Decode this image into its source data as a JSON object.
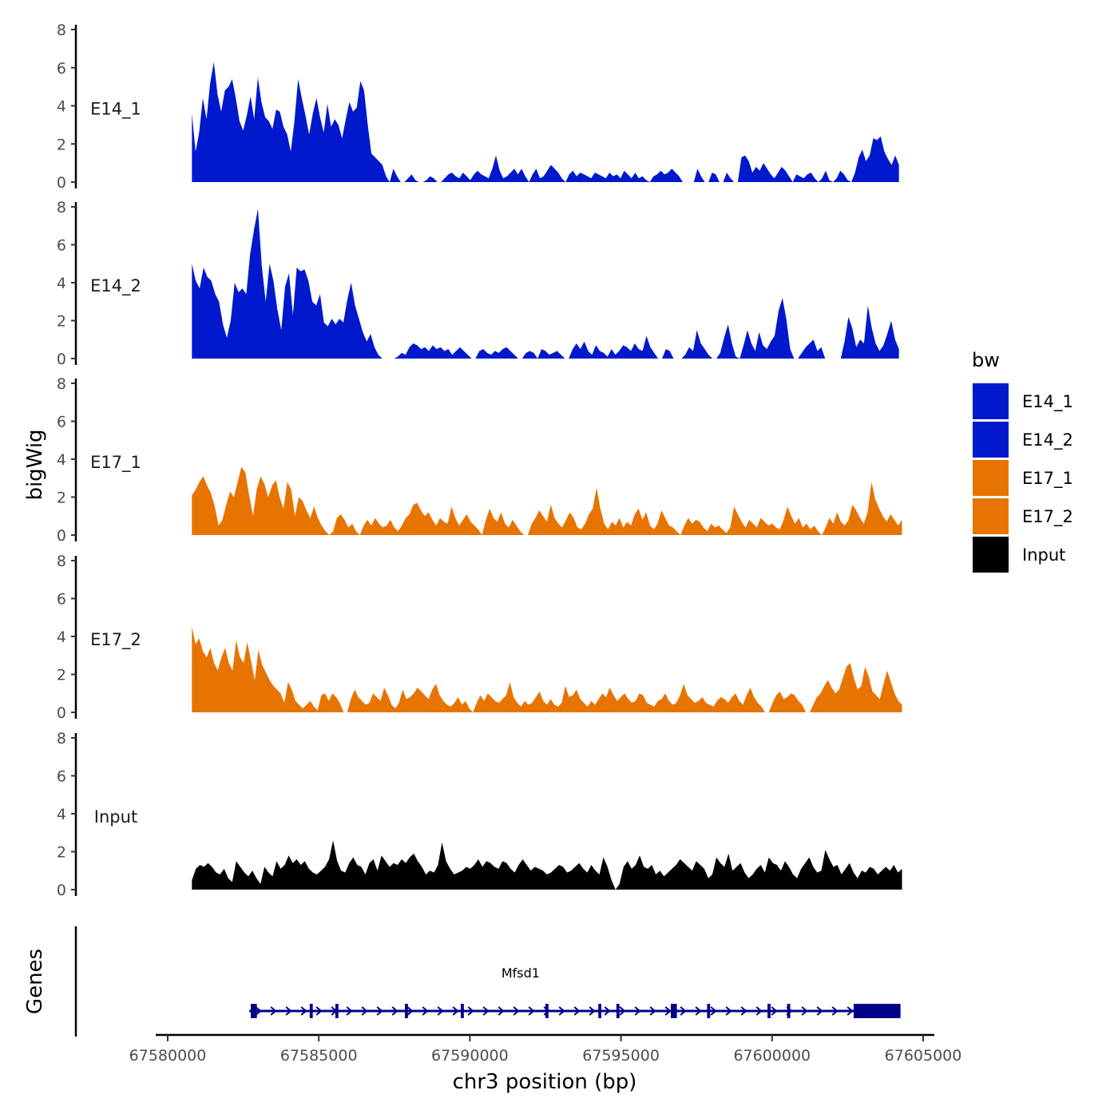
{
  "chart_data": {
    "type": "area",
    "title": "",
    "ylabel": "bigWig",
    "xlabel": "chr3 position (bp)",
    "chromosome": "chr3",
    "xlim": [
      67579500,
      67605500
    ],
    "ylim": [
      0,
      8
    ],
    "y_ticks": [
      0,
      2,
      4,
      6,
      8
    ],
    "x_ticks": [
      67580000,
      67585000,
      67590000,
      67595000,
      67600000,
      67605000
    ],
    "x_tick_labels": [
      "67580000",
      "67585000",
      "67590000",
      "67595000",
      "67600000",
      "67605000"
    ],
    "legend": {
      "title": "bw",
      "position": "right",
      "entries": [
        {
          "label": "E14_1",
          "color": "#0019CC"
        },
        {
          "label": "E14_2",
          "color": "#0019CC"
        },
        {
          "label": "E17_1",
          "color": "#E87400"
        },
        {
          "label": "E17_2",
          "color": "#E87400"
        },
        {
          "label": "Input",
          "color": "#000000"
        }
      ]
    },
    "series": [
      {
        "name": "E14_1",
        "color": "#0019CC",
        "x_start": 67580800,
        "x_end": 67604200,
        "values": [
          3.6,
          1.6,
          2.6,
          4.4,
          3.3,
          5.2,
          6.3,
          4.6,
          3.7,
          4.8,
          5.0,
          5.4,
          4.4,
          3.2,
          2.7,
          3.5,
          4.5,
          3.3,
          5.5,
          4.2,
          3.4,
          3.2,
          2.8,
          3.8,
          3.7,
          2.9,
          2.5,
          1.6,
          3.2,
          5.4,
          4.4,
          3.5,
          2.5,
          3.6,
          4.4,
          3.4,
          2.6,
          4.1,
          2.9,
          3.3,
          3.0,
          2.3,
          3.3,
          4.2,
          3.7,
          3.9,
          5.3,
          4.8,
          3.0,
          1.5,
          1.3,
          1.1,
          0.9,
          0.3,
          0.0,
          0.7,
          0.3,
          0.0,
          0.0,
          0.2,
          0.4,
          0.1,
          0.0,
          0.0,
          0.1,
          0.3,
          0.2,
          0.0,
          0.0,
          0.2,
          0.4,
          0.5,
          0.3,
          0.2,
          0.5,
          0.3,
          0.1,
          0.4,
          0.6,
          0.4,
          0.3,
          0.2,
          0.7,
          1.4,
          0.6,
          0.2,
          0.3,
          0.5,
          0.7,
          0.4,
          0.7,
          0.3,
          0.0,
          0.4,
          0.7,
          0.2,
          0.3,
          0.6,
          0.9,
          0.7,
          0.5,
          0.2,
          0.0,
          0.4,
          0.6,
          0.3,
          0.5,
          0.4,
          0.3,
          0.2,
          0.5,
          0.4,
          0.3,
          0.2,
          0.5,
          0.3,
          0.4,
          0.2,
          0.6,
          0.4,
          0.2,
          0.5,
          0.2,
          0.3,
          0.1,
          0.0,
          0.3,
          0.4,
          0.6,
          0.4,
          0.5,
          0.7,
          0.5,
          0.3,
          0.0,
          0.0,
          0.0,
          0.0,
          0.7,
          0.3,
          0.0,
          0.0,
          0.5,
          0.4,
          0.0,
          0.0,
          0.5,
          0.2,
          0.0,
          0.0,
          1.3,
          1.4,
          1.1,
          0.5,
          0.8,
          0.6,
          1.0,
          0.7,
          0.4,
          0.2,
          0.5,
          0.8,
          0.6,
          0.3,
          0.0,
          0.4,
          0.3,
          0.2,
          0.4,
          0.5,
          0.2,
          0.0,
          0.2,
          0.6,
          0.1,
          0.0,
          0.2,
          0.6,
          0.4,
          0.1,
          0.0,
          0.5,
          1.3,
          1.7,
          1.1,
          1.4,
          2.3,
          2.2,
          2.4,
          1.6,
          1.2,
          0.9,
          1.4,
          0.9
        ]
      },
      {
        "name": "E14_2",
        "color": "#0019CC",
        "x_start": 67580800,
        "x_end": 67604200,
        "values": [
          5.0,
          4.1,
          3.7,
          4.8,
          4.3,
          4.1,
          3.4,
          3.0,
          1.8,
          1.1,
          2.0,
          4.0,
          3.5,
          3.7,
          3.4,
          5.5,
          6.8,
          7.9,
          4.9,
          3.0,
          5.0,
          4.1,
          2.6,
          1.5,
          3.8,
          4.5,
          2.3,
          4.8,
          4.6,
          4.7,
          4.1,
          3.0,
          2.8,
          3.4,
          1.9,
          1.7,
          2.1,
          1.8,
          2.1,
          1.9,
          3.1,
          4.0,
          2.8,
          2.1,
          1.4,
          0.9,
          1.3,
          0.6,
          0.2,
          0.0,
          0.0,
          0.0,
          0.0,
          0.1,
          0.3,
          0.2,
          0.6,
          0.8,
          0.7,
          0.5,
          0.6,
          0.4,
          0.7,
          0.5,
          0.6,
          0.4,
          0.5,
          0.2,
          0.4,
          0.6,
          0.4,
          0.2,
          0.0,
          0.0,
          0.4,
          0.5,
          0.3,
          0.2,
          0.4,
          0.3,
          0.5,
          0.6,
          0.4,
          0.2,
          0.0,
          0.0,
          0.3,
          0.4,
          0.3,
          0.0,
          0.5,
          0.4,
          0.2,
          0.3,
          0.4,
          0.2,
          0.0,
          0.0,
          0.5,
          0.8,
          0.5,
          0.9,
          0.4,
          0.2,
          0.7,
          0.4,
          0.3,
          0.1,
          0.5,
          0.2,
          0.4,
          0.7,
          0.6,
          0.4,
          0.8,
          0.5,
          0.4,
          1.2,
          0.6,
          0.3,
          0.0,
          0.0,
          0.5,
          0.4,
          0.0,
          0.0,
          0.0,
          0.2,
          0.6,
          0.4,
          1.5,
          0.8,
          0.5,
          0.2,
          0.0,
          0.0,
          0.3,
          1.1,
          1.8,
          0.8,
          0.1,
          0.0,
          0.7,
          1.5,
          0.8,
          0.4,
          1.4,
          0.7,
          0.5,
          0.9,
          1.2,
          2.5,
          3.2,
          2.1,
          0.5,
          0.0,
          0.0,
          0.3,
          0.6,
          0.8,
          1.0,
          0.4,
          0.6,
          0.0,
          0.0,
          0.0,
          0.0,
          0.0,
          0.9,
          2.2,
          1.6,
          0.6,
          1.0,
          0.8,
          2.8,
          1.6,
          0.8,
          0.4,
          0.7,
          1.3,
          2.0,
          1.0,
          0.5
        ]
      },
      {
        "name": "E17_1",
        "color": "#E87400",
        "x_start": 67580800,
        "x_end": 67604300,
        "values": [
          2.1,
          2.4,
          2.8,
          3.1,
          2.6,
          2.2,
          1.5,
          0.5,
          0.8,
          1.6,
          2.3,
          2.0,
          2.8,
          3.6,
          3.3,
          2.1,
          1.0,
          2.4,
          3.1,
          2.7,
          2.0,
          2.6,
          2.9,
          2.0,
          1.4,
          2.8,
          2.4,
          1.0,
          2.0,
          1.8,
          1.3,
          0.9,
          1.5,
          0.9,
          0.5,
          0.2,
          0.0,
          0.2,
          0.9,
          1.1,
          0.8,
          0.4,
          0.6,
          0.2,
          0.0,
          0.5,
          0.8,
          0.5,
          0.9,
          0.6,
          0.4,
          0.5,
          0.8,
          0.4,
          0.2,
          0.5,
          0.9,
          1.1,
          1.6,
          1.7,
          1.3,
          1.0,
          1.2,
          0.8,
          0.5,
          0.9,
          0.7,
          0.6,
          1.5,
          0.9,
          0.5,
          0.8,
          1.1,
          0.7,
          0.5,
          0.3,
          0.0,
          0.8,
          1.4,
          0.9,
          0.7,
          1.2,
          0.6,
          0.4,
          0.8,
          0.5,
          0.2,
          0.0,
          0.0,
          0.6,
          0.9,
          1.3,
          1.0,
          0.7,
          1.6,
          0.9,
          0.6,
          0.4,
          0.8,
          1.2,
          0.9,
          0.4,
          0.3,
          0.6,
          1.1,
          1.4,
          2.5,
          1.4,
          0.6,
          0.3,
          0.7,
          0.5,
          0.9,
          0.4,
          0.7,
          0.5,
          1.1,
          1.4,
          0.8,
          1.2,
          0.5,
          0.3,
          0.6,
          1.3,
          0.9,
          0.5,
          0.4,
          0.2,
          0.0,
          0.5,
          0.9,
          0.6,
          0.8,
          0.7,
          0.4,
          0.2,
          0.6,
          0.4,
          0.5,
          0.3,
          0.1,
          0.4,
          1.5,
          1.1,
          0.7,
          0.4,
          0.8,
          0.6,
          0.4,
          0.9,
          0.7,
          0.5,
          0.6,
          0.4,
          0.3,
          0.8,
          1.5,
          1.0,
          0.6,
          0.9,
          0.4,
          0.6,
          0.3,
          0.5,
          0.2,
          0.0,
          0.4,
          0.9,
          0.6,
          1.2,
          0.7,
          0.5,
          0.8,
          1.6,
          1.3,
          0.9,
          0.6,
          1.2,
          2.8,
          1.9,
          1.4,
          1.0,
          0.7,
          1.1,
          0.8,
          0.5,
          0.8
        ]
      },
      {
        "name": "E17_2",
        "color": "#E87400",
        "x_start": 67580800,
        "x_end": 67604300,
        "values": [
          4.5,
          3.6,
          3.9,
          3.2,
          2.9,
          3.4,
          2.6,
          2.2,
          2.9,
          3.4,
          2.6,
          2.2,
          3.8,
          2.9,
          2.6,
          3.7,
          2.7,
          1.7,
          3.3,
          2.5,
          2.1,
          1.7,
          1.4,
          1.2,
          1.0,
          0.5,
          1.6,
          1.2,
          0.6,
          0.4,
          0.2,
          0.4,
          0.6,
          0.3,
          0.1,
          0.9,
          1.0,
          0.6,
          1.0,
          0.8,
          0.5,
          0.0,
          0.0,
          0.7,
          1.2,
          0.8,
          0.6,
          0.4,
          0.5,
          1.0,
          0.8,
          0.6,
          1.3,
          0.9,
          0.4,
          0.2,
          0.5,
          1.2,
          0.7,
          0.8,
          1.0,
          1.3,
          1.1,
          0.9,
          0.7,
          1.2,
          1.5,
          0.9,
          0.6,
          0.4,
          0.3,
          0.5,
          0.8,
          0.4,
          0.6,
          0.2,
          0.0,
          0.5,
          0.9,
          0.6,
          1.0,
          0.8,
          0.6,
          0.5,
          0.7,
          0.9,
          1.6,
          0.8,
          0.5,
          0.3,
          0.6,
          0.4,
          0.5,
          0.8,
          1.1,
          0.6,
          0.4,
          0.7,
          0.4,
          0.3,
          0.5,
          1.4,
          0.8,
          0.9,
          1.2,
          0.7,
          0.5,
          0.3,
          0.6,
          0.4,
          0.7,
          1.0,
          0.8,
          1.3,
          0.9,
          0.6,
          0.8,
          1.0,
          0.7,
          0.5,
          0.6,
          1.0,
          0.9,
          0.5,
          0.4,
          0.3,
          0.6,
          0.7,
          1.0,
          0.6,
          0.4,
          0.5,
          0.9,
          1.5,
          0.9,
          0.7,
          0.5,
          0.6,
          0.8,
          0.5,
          0.4,
          0.3,
          0.6,
          0.8,
          0.7,
          0.5,
          0.8,
          1.0,
          0.6,
          0.4,
          0.9,
          1.3,
          0.8,
          0.5,
          0.3,
          0.0,
          0.0,
          0.5,
          0.9,
          1.1,
          0.7,
          0.8,
          1.0,
          0.9,
          0.6,
          0.4,
          0.0,
          0.0,
          0.4,
          0.8,
          1.0,
          1.4,
          1.7,
          1.3,
          1.0,
          1.2,
          1.8,
          2.4,
          2.6,
          1.8,
          1.2,
          1.4,
          2.4,
          1.9,
          1.1,
          0.9,
          0.7,
          1.5,
          2.2,
          1.6,
          1.0,
          0.6,
          0.4
        ]
      },
      {
        "name": "Input",
        "color": "#000000",
        "x_start": 67580800,
        "x_end": 67604300,
        "values": [
          0.5,
          1.1,
          1.3,
          1.2,
          1.4,
          1.2,
          0.9,
          0.8,
          1.1,
          0.6,
          0.4,
          1.5,
          1.2,
          0.9,
          0.7,
          1.0,
          0.6,
          0.3,
          1.2,
          0.9,
          0.7,
          1.5,
          1.1,
          1.3,
          1.8,
          1.4,
          1.6,
          1.3,
          1.5,
          1.1,
          0.9,
          0.8,
          1.0,
          1.2,
          1.6,
          2.6,
          1.5,
          1.0,
          0.9,
          1.4,
          1.7,
          1.3,
          1.2,
          0.8,
          1.4,
          1.6,
          1.0,
          1.8,
          1.5,
          1.2,
          1.4,
          1.3,
          1.6,
          1.4,
          1.7,
          1.9,
          1.5,
          1.2,
          0.8,
          1.0,
          0.9,
          1.3,
          2.5,
          1.5,
          1.1,
          0.8,
          0.9,
          1.0,
          1.2,
          1.1,
          1.3,
          1.6,
          1.2,
          1.5,
          1.4,
          1.2,
          1.1,
          1.5,
          1.4,
          1.1,
          0.9,
          1.3,
          1.6,
          1.3,
          1.0,
          1.2,
          1.1,
          1.0,
          0.8,
          0.9,
          1.1,
          1.3,
          1.2,
          0.9,
          1.0,
          1.2,
          1.4,
          1.1,
          0.9,
          1.3,
          1.0,
          0.8,
          1.7,
          1.2,
          0.5,
          0.0,
          0.3,
          1.2,
          1.5,
          1.1,
          1.3,
          1.8,
          1.2,
          1.1,
          1.3,
          0.8,
          1.0,
          0.7,
          0.9,
          1.1,
          1.3,
          1.6,
          1.4,
          1.2,
          1.0,
          1.5,
          1.3,
          1.1,
          0.6,
          0.8,
          1.7,
          1.4,
          1.2,
          1.9,
          1.0,
          1.2,
          1.4,
          0.9,
          0.6,
          0.8,
          1.1,
          1.3,
          0.9,
          1.7,
          1.4,
          1.3,
          1.0,
          1.5,
          1.2,
          0.8,
          0.6,
          1.1,
          1.4,
          1.7,
          1.2,
          0.9,
          1.0,
          2.1,
          1.6,
          1.2,
          1.3,
          0.8,
          1.1,
          1.4,
          0.9,
          0.6,
          1.0,
          0.9,
          1.2,
          1.1,
          0.8,
          1.0,
          1.2,
          1.0,
          1.3,
          0.9,
          1.1
        ]
      }
    ],
    "genes_track": {
      "label": "Genes",
      "genes": [
        {
          "name": "Mfsd1",
          "color": "#00008B",
          "strand": "+",
          "start": 67582700,
          "end": 67604250,
          "exons": [
            [
              67582750,
              67582950
            ],
            [
              67584700,
              67584800
            ],
            [
              67585550,
              67585650
            ],
            [
              67587850,
              67587950
            ],
            [
              67589700,
              67589800
            ],
            [
              67592500,
              67592600
            ],
            [
              67594250,
              67594350
            ],
            [
              67594850,
              67594950
            ],
            [
              67596650,
              67596850
            ],
            [
              67597850,
              67597950
            ],
            [
              67599850,
              67599950
            ],
            [
              67600500,
              67600600
            ],
            [
              67602700,
              67604250
            ]
          ]
        }
      ]
    }
  }
}
